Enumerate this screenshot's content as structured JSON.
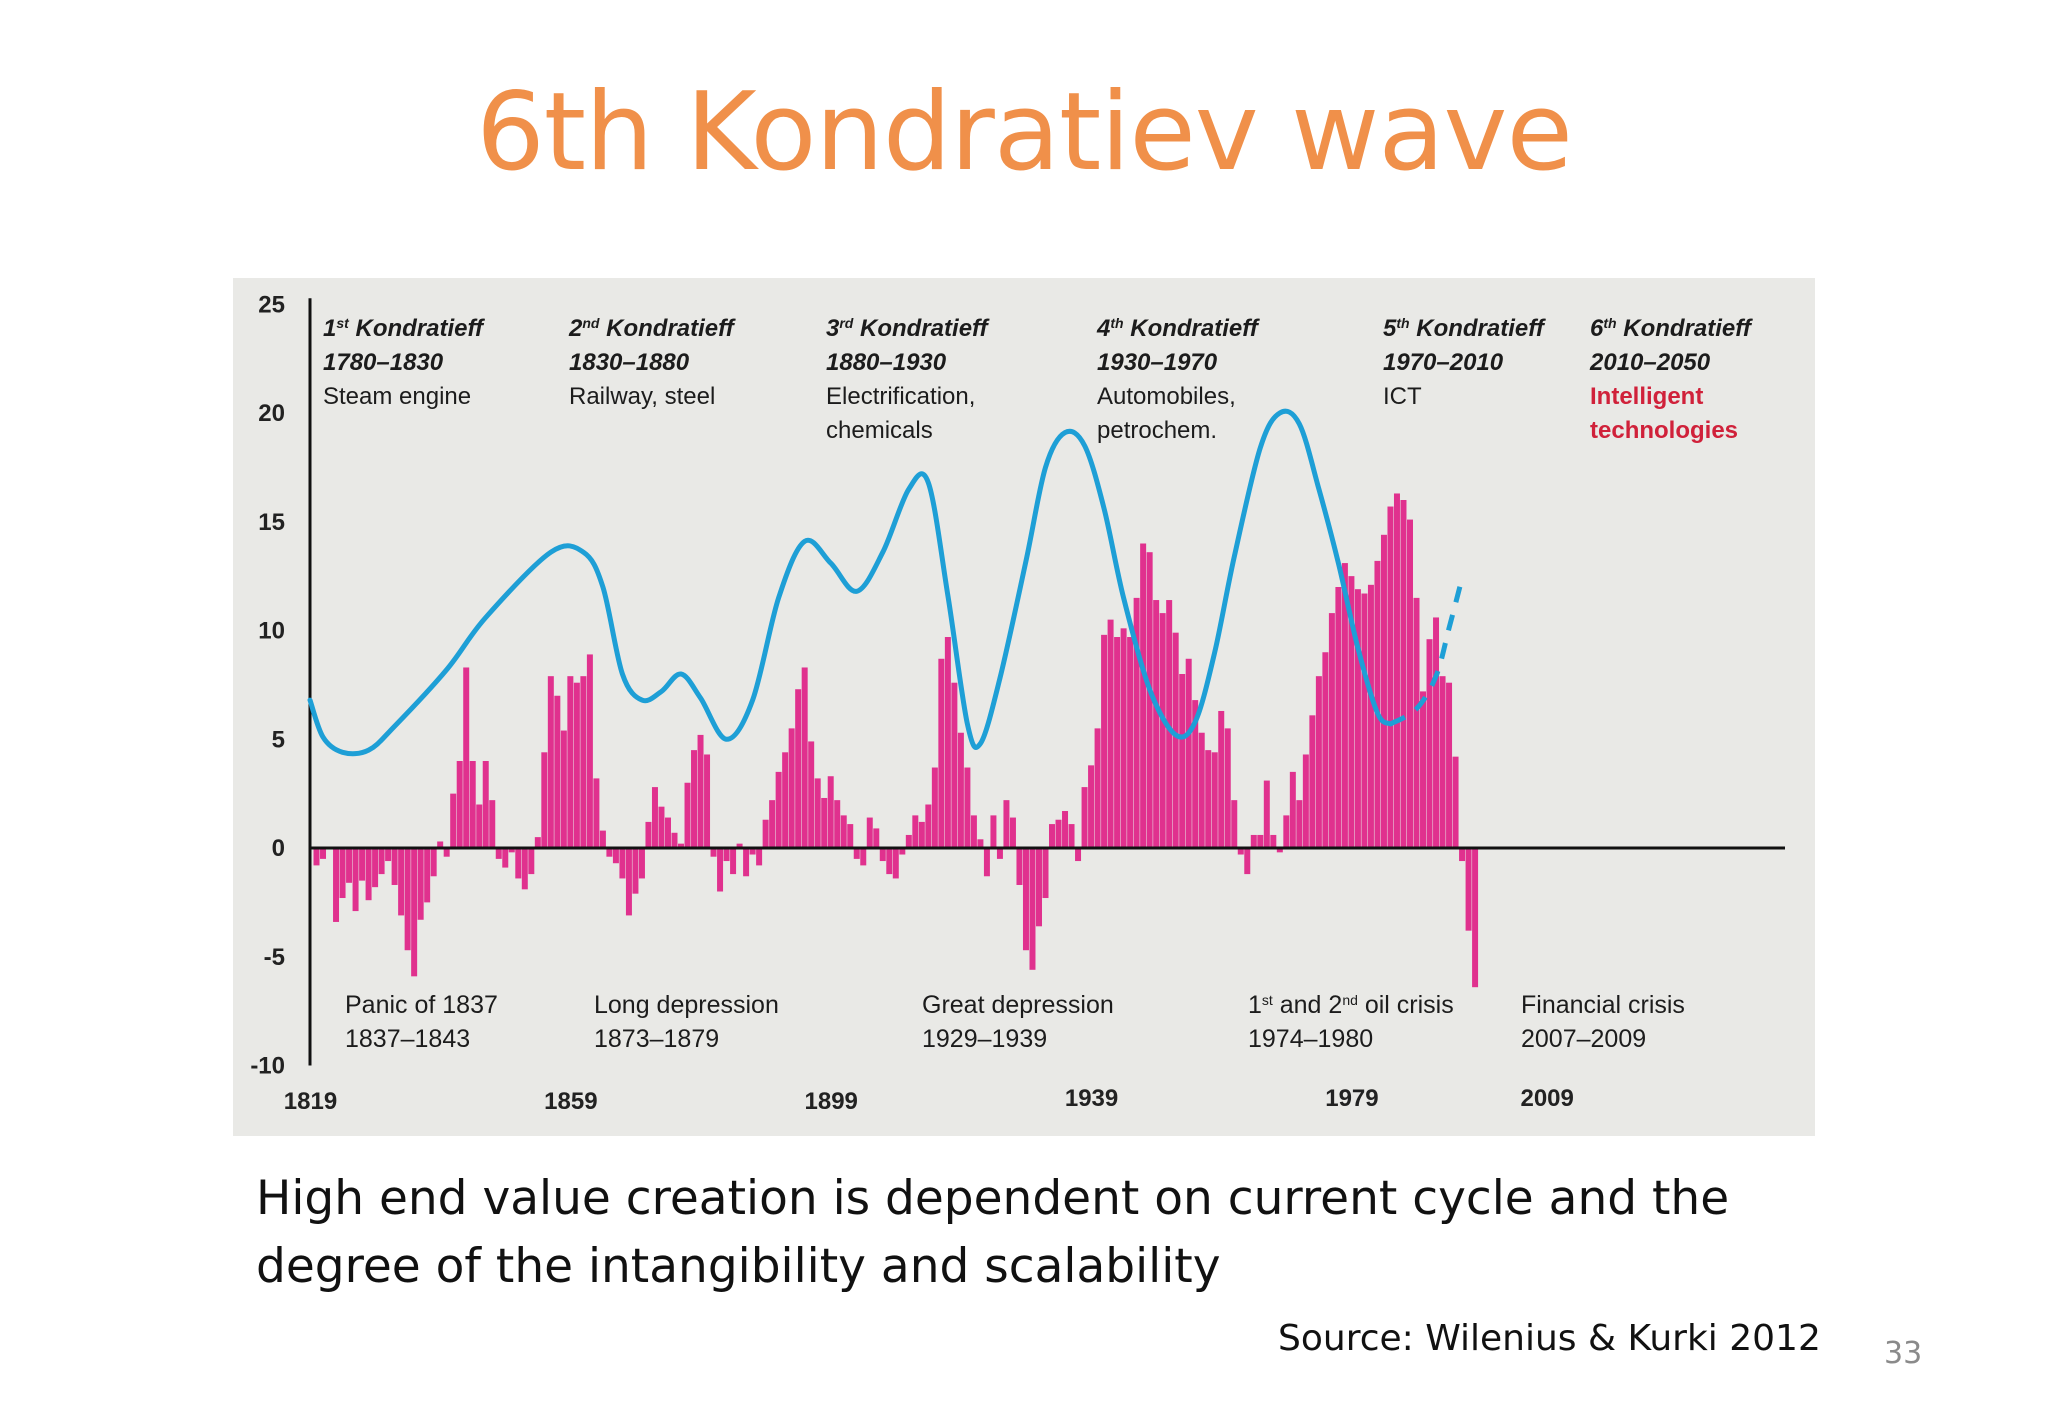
{
  "slide": {
    "title": "6th Kondratiev wave",
    "caption_line1": "High end value creation is  dependent on current cycle and the",
    "caption_line2": "degree of the intangibility and scalability",
    "source": "Source: Wilenius & Kurki 2012",
    "page_number": "33"
  },
  "chart_data": {
    "type": "bar",
    "title": "",
    "xlabel": "",
    "ylabel": "",
    "ylim": [
      -10,
      25
    ],
    "xlim": [
      1819,
      2045
    ],
    "y_ticks": [
      "25",
      "20",
      "15",
      "10",
      "5",
      "0",
      "-5",
      "-10"
    ],
    "y_tick_values": [
      25,
      20,
      15,
      10,
      5,
      0,
      -5,
      -10
    ],
    "x_ticks": [
      "1819",
      "1859",
      "1899",
      "1939",
      "1979",
      "2009"
    ],
    "x_tick_values": [
      1819,
      1859,
      1899,
      1939,
      1979,
      2009
    ],
    "grid": false,
    "legend": "none",
    "colors": {
      "bars": "#e0318e",
      "wave": "#1e9fd6",
      "axis": "#111111",
      "background": "#e9e9e6",
      "highlight": "#d0213a"
    },
    "bar_series": {
      "name": "",
      "points": [
        [
          1820,
          -0.8
        ],
        [
          1821,
          -0.5
        ],
        [
          1823,
          -3.4
        ],
        [
          1824,
          -2.3
        ],
        [
          1825,
          -1.6
        ],
        [
          1826,
          -2.9
        ],
        [
          1827,
          -1.5
        ],
        [
          1828,
          -2.4
        ],
        [
          1829,
          -1.8
        ],
        [
          1830,
          -1.2
        ],
        [
          1831,
          -0.6
        ],
        [
          1832,
          -1.7
        ],
        [
          1833,
          -3.1
        ],
        [
          1834,
          -4.7
        ],
        [
          1835,
          -5.9
        ],
        [
          1836,
          -3.3
        ],
        [
          1837,
          -2.5
        ],
        [
          1838,
          -1.3
        ],
        [
          1839,
          0.3
        ],
        [
          1840,
          -0.4
        ],
        [
          1841,
          2.5
        ],
        [
          1842,
          4.0
        ],
        [
          1843,
          8.3
        ],
        [
          1844,
          4.0
        ],
        [
          1845,
          2.0
        ],
        [
          1846,
          4.0
        ],
        [
          1847,
          2.2
        ],
        [
          1848,
          -0.5
        ],
        [
          1849,
          -0.9
        ],
        [
          1850,
          -0.2
        ],
        [
          1851,
          -1.4
        ],
        [
          1852,
          -1.9
        ],
        [
          1853,
          -1.2
        ],
        [
          1854,
          0.5
        ],
        [
          1855,
          4.4
        ],
        [
          1856,
          7.9
        ],
        [
          1857,
          7.0
        ],
        [
          1858,
          5.4
        ],
        [
          1859,
          7.9
        ],
        [
          1860,
          7.6
        ],
        [
          1861,
          7.9
        ],
        [
          1862,
          8.9
        ],
        [
          1863,
          3.2
        ],
        [
          1864,
          0.8
        ],
        [
          1865,
          -0.4
        ],
        [
          1866,
          -0.7
        ],
        [
          1867,
          -1.4
        ],
        [
          1868,
          -3.1
        ],
        [
          1869,
          -2.1
        ],
        [
          1870,
          -1.4
        ],
        [
          1871,
          1.2
        ],
        [
          1872,
          2.8
        ],
        [
          1873,
          1.9
        ],
        [
          1874,
          1.4
        ],
        [
          1875,
          0.7
        ],
        [
          1876,
          0.2
        ],
        [
          1877,
          3.0
        ],
        [
          1878,
          4.5
        ],
        [
          1879,
          5.2
        ],
        [
          1880,
          4.3
        ],
        [
          1881,
          -0.4
        ],
        [
          1882,
          -2.0
        ],
        [
          1883,
          -0.6
        ],
        [
          1884,
          -1.2
        ],
        [
          1885,
          0.2
        ],
        [
          1886,
          -1.3
        ],
        [
          1887,
          -0.3
        ],
        [
          1888,
          -0.8
        ],
        [
          1889,
          1.3
        ],
        [
          1890,
          2.2
        ],
        [
          1891,
          3.5
        ],
        [
          1892,
          4.4
        ],
        [
          1893,
          5.5
        ],
        [
          1894,
          7.3
        ],
        [
          1895,
          8.3
        ],
        [
          1896,
          4.9
        ],
        [
          1897,
          3.2
        ],
        [
          1898,
          2.3
        ],
        [
          1899,
          3.3
        ],
        [
          1900,
          2.2
        ],
        [
          1901,
          1.5
        ],
        [
          1902,
          1.1
        ],
        [
          1903,
          -0.5
        ],
        [
          1904,
          -0.8
        ],
        [
          1905,
          1.4
        ],
        [
          1906,
          0.9
        ],
        [
          1907,
          -0.6
        ],
        [
          1908,
          -1.2
        ],
        [
          1909,
          -1.4
        ],
        [
          1910,
          -0.3
        ],
        [
          1911,
          0.6
        ],
        [
          1912,
          1.5
        ],
        [
          1913,
          1.2
        ],
        [
          1914,
          2.0
        ],
        [
          1915,
          3.7
        ],
        [
          1916,
          8.7
        ],
        [
          1917,
          9.7
        ],
        [
          1918,
          7.6
        ],
        [
          1919,
          5.3
        ],
        [
          1920,
          3.7
        ],
        [
          1921,
          1.5
        ],
        [
          1922,
          0.4
        ],
        [
          1923,
          -1.3
        ],
        [
          1924,
          1.5
        ],
        [
          1925,
          -0.5
        ],
        [
          1926,
          2.2
        ],
        [
          1927,
          1.4
        ],
        [
          1928,
          -1.7
        ],
        [
          1929,
          -4.7
        ],
        [
          1930,
          -5.6
        ],
        [
          1931,
          -3.6
        ],
        [
          1932,
          -2.3
        ],
        [
          1933,
          1.1
        ],
        [
          1934,
          1.3
        ],
        [
          1935,
          1.7
        ],
        [
          1936,
          1.1
        ],
        [
          1937,
          -0.6
        ],
        [
          1938,
          2.8
        ],
        [
          1939,
          3.8
        ],
        [
          1940,
          5.5
        ],
        [
          1941,
          9.8
        ],
        [
          1942,
          10.5
        ],
        [
          1943,
          9.7
        ],
        [
          1944,
          10.1
        ],
        [
          1945,
          9.7
        ],
        [
          1946,
          11.5
        ],
        [
          1947,
          14.0
        ],
        [
          1948,
          13.6
        ],
        [
          1949,
          11.4
        ],
        [
          1950,
          10.8
        ],
        [
          1951,
          11.4
        ],
        [
          1952,
          9.9
        ],
        [
          1953,
          8.0
        ],
        [
          1954,
          8.7
        ],
        [
          1955,
          6.8
        ],
        [
          1956,
          5.3
        ],
        [
          1957,
          4.5
        ],
        [
          1958,
          4.4
        ],
        [
          1959,
          6.3
        ],
        [
          1960,
          5.5
        ],
        [
          1961,
          2.2
        ],
        [
          1962,
          -0.3
        ],
        [
          1963,
          -1.2
        ],
        [
          1964,
          0.6
        ],
        [
          1965,
          0.6
        ],
        [
          1966,
          3.1
        ],
        [
          1967,
          0.6
        ],
        [
          1968,
          -0.2
        ],
        [
          1969,
          1.5
        ],
        [
          1970,
          3.5
        ],
        [
          1971,
          2.2
        ],
        [
          1972,
          4.3
        ],
        [
          1973,
          6.1
        ],
        [
          1974,
          7.9
        ],
        [
          1975,
          9.0
        ],
        [
          1976,
          10.8
        ],
        [
          1977,
          12.0
        ],
        [
          1978,
          13.1
        ],
        [
          1979,
          12.5
        ],
        [
          1980,
          11.9
        ],
        [
          1981,
          11.7
        ],
        [
          1982,
          12.1
        ],
        [
          1983,
          13.2
        ],
        [
          1984,
          14.4
        ],
        [
          1985,
          15.7
        ],
        [
          1986,
          16.3
        ],
        [
          1987,
          16.0
        ],
        [
          1988,
          15.1
        ],
        [
          1989,
          11.5
        ],
        [
          1990,
          7.2
        ],
        [
          1991,
          9.6
        ],
        [
          1992,
          10.6
        ],
        [
          1993,
          7.9
        ],
        [
          1994,
          7.6
        ],
        [
          1995,
          4.2
        ],
        [
          1996,
          -0.6
        ],
        [
          1997,
          -3.8
        ],
        [
          1998,
          -6.4
        ]
      ]
    },
    "wave_series": {
      "name": "",
      "solid_points": [
        [
          1819,
          6.8
        ],
        [
          1821,
          5.1
        ],
        [
          1824,
          4.4
        ],
        [
          1828,
          4.5
        ],
        [
          1832,
          5.6
        ],
        [
          1840,
          8.2
        ],
        [
          1846,
          10.6
        ],
        [
          1856,
          13.6
        ],
        [
          1861,
          13.6
        ],
        [
          1864,
          12.0
        ],
        [
          1867,
          8.0
        ],
        [
          1870,
          6.8
        ],
        [
          1873,
          7.2
        ],
        [
          1876,
          8.0
        ],
        [
          1879,
          6.9
        ],
        [
          1883,
          5.0
        ],
        [
          1887,
          6.8
        ],
        [
          1891,
          11.5
        ],
        [
          1895,
          14.1
        ],
        [
          1899,
          13.1
        ],
        [
          1903,
          11.8
        ],
        [
          1907,
          13.6
        ],
        [
          1911,
          16.5
        ],
        [
          1914,
          16.8
        ],
        [
          1917,
          11.6
        ],
        [
          1920,
          5.7
        ],
        [
          1922,
          4.8
        ],
        [
          1925,
          7.8
        ],
        [
          1929,
          13.2
        ],
        [
          1932,
          17.5
        ],
        [
          1935,
          19.1
        ],
        [
          1938,
          18.5
        ],
        [
          1941,
          15.6
        ],
        [
          1944,
          11.5
        ],
        [
          1948,
          7.3
        ],
        [
          1952,
          5.2
        ],
        [
          1955,
          5.8
        ],
        [
          1958,
          9.0
        ],
        [
          1961,
          13.4
        ],
        [
          1965,
          18.4
        ],
        [
          1968,
          20.0
        ],
        [
          1971,
          19.5
        ],
        [
          1974,
          16.5
        ],
        [
          1977,
          13.1
        ],
        [
          1980,
          9.2
        ],
        [
          1983,
          6.2
        ],
        [
          1985,
          5.7
        ]
      ],
      "dashed_points": [
        [
          1985,
          5.7
        ],
        [
          1989,
          6.4
        ],
        [
          1992,
          7.9
        ],
        [
          1994,
          10.1
        ],
        [
          1996,
          12.4
        ]
      ]
    },
    "k_annotations": [
      {
        "name": "1st Kondratieff",
        "sup": "st",
        "ord": "1",
        "years": "1780–1830",
        "tech": [
          "Steam engine"
        ],
        "red": false
      },
      {
        "name": "2nd Kondratieff",
        "sup": "nd",
        "ord": "2",
        "years": "1830–1880",
        "tech": [
          "Railway, steel"
        ],
        "red": false
      },
      {
        "name": "3rd Kondratieff",
        "sup": "rd",
        "ord": "3",
        "years": "1880–1930",
        "tech": [
          "Electrification,",
          "chemicals"
        ],
        "red": false
      },
      {
        "name": "4th Kondratieff",
        "sup": "th",
        "ord": "4",
        "years": "1930–1970",
        "tech": [
          "Automobiles,",
          "petrochem."
        ],
        "red": false
      },
      {
        "name": "5th Kondratieff",
        "sup": "th",
        "ord": "5",
        "years": "1970–2010",
        "tech": [
          "ICT"
        ],
        "red": false
      },
      {
        "name": "6th Kondratieff",
        "sup": "th",
        "ord": "6",
        "years": "2010–2050",
        "tech": [
          "Intelligent",
          "technologies"
        ],
        "red": true
      }
    ],
    "crisis_annotations": [
      {
        "line1": "Panic of 1837",
        "line2": "1837–1843"
      },
      {
        "line1": "Long depression",
        "line2": "1873–1879"
      },
      {
        "line1": "Great depression",
        "line2": "1929–1939"
      },
      {
        "line1": "1st and 2nd oil crisis",
        "line2": "1974–1980"
      },
      {
        "line1": "Financial crisis",
        "line2": "2007–2009"
      }
    ]
  }
}
